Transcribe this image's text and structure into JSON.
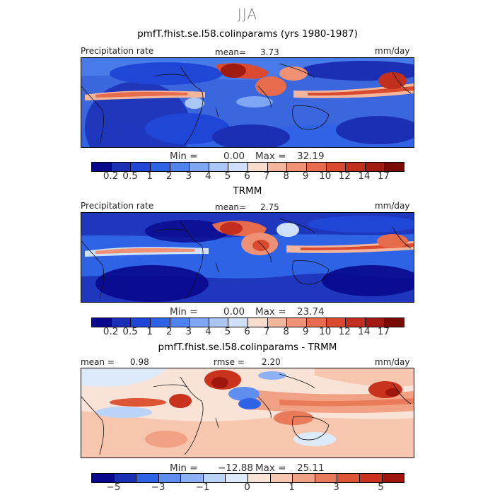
{
  "title": "JJA",
  "palette": {
    "precip": [
      "#08088c",
      "#1b2fb5",
      "#1f46d6",
      "#2e63e6",
      "#4f83ee",
      "#7ea6f2",
      "#a9c6f7",
      "#cfe0fb",
      "#f9dccb",
      "#f4b69a",
      "#ee9174",
      "#e66c4d",
      "#d94a30",
      "#c22f1c",
      "#a01a10",
      "#7a0a06"
    ],
    "diff": [
      "#08088c",
      "#1b2fb5",
      "#2e63e6",
      "#5e8ff0",
      "#8db1f4",
      "#bcd3f8",
      "#ddeafc",
      "#f9e3d6",
      "#f6c6ae",
      "#f1a184",
      "#e97a5a",
      "#de5536",
      "#c9321d",
      "#9e160d"
    ]
  },
  "panels": [
    {
      "title": "pmfT.fhist.se.l58.colinparams (yrs 1980-1987)",
      "left_label": "Precipitation rate",
      "stat_label": "mean=",
      "stat_value": "3.73",
      "units": "mm/day",
      "min_label": "Min =",
      "min_value": "0.00",
      "max_label": "Max =",
      "max_value": "32.19",
      "colorbar_ticks": [
        "0.2",
        "0.5",
        "1",
        "2",
        "3",
        "4",
        "5",
        "6",
        "7",
        "8",
        "9",
        "10",
        "12",
        "14",
        "17"
      ]
    },
    {
      "title": "TRMM",
      "left_label": "Precipitation rate",
      "stat_label": "mean=",
      "stat_value": "2.75",
      "units": "mm/day",
      "min_label": "Min =",
      "min_value": "0.00",
      "max_label": "Max =",
      "max_value": "23.74",
      "colorbar_ticks": [
        "0.2",
        "0.5",
        "1",
        "2",
        "3",
        "4",
        "5",
        "6",
        "7",
        "8",
        "9",
        "10",
        "12",
        "14",
        "17"
      ]
    },
    {
      "title": "pmfT.fhist.se.l58.colinparams - TRMM",
      "left_label": "mean =",
      "left_value": "0.98",
      "stat_label": "rmse =",
      "stat_value": "2.20",
      "units": "mm/day",
      "min_label": "Min =",
      "min_value": "−12.88",
      "max_label": "Max =",
      "max_value": "25.11",
      "colorbar_ticks": [
        "−5",
        "−3",
        "−1",
        "0",
        "1",
        "3",
        "5"
      ]
    }
  ],
  "chart_data": [
    {
      "type": "heatmap",
      "title": "pmfT.fhist.se.l58.colinparams (yrs 1980-1987)",
      "variable": "Precipitation rate",
      "units": "mm/day",
      "mean": 3.73,
      "min": 0.0,
      "max": 32.19,
      "contour_levels": [
        0.2,
        0.5,
        1,
        2,
        3,
        4,
        5,
        6,
        7,
        8,
        9,
        10,
        12,
        14,
        17
      ]
    },
    {
      "type": "heatmap",
      "title": "TRMM",
      "variable": "Precipitation rate",
      "units": "mm/day",
      "mean": 2.75,
      "min": 0.0,
      "max": 23.74,
      "contour_levels": [
        0.2,
        0.5,
        1,
        2,
        3,
        4,
        5,
        6,
        7,
        8,
        9,
        10,
        12,
        14,
        17
      ]
    },
    {
      "type": "heatmap",
      "title": "pmfT.fhist.se.l58.colinparams - TRMM",
      "units": "mm/day",
      "mean": 0.98,
      "rmse": 2.2,
      "min": -12.88,
      "max": 25.11,
      "contour_levels": [
        -5,
        -3,
        -1,
        0,
        1,
        3,
        5
      ]
    }
  ]
}
